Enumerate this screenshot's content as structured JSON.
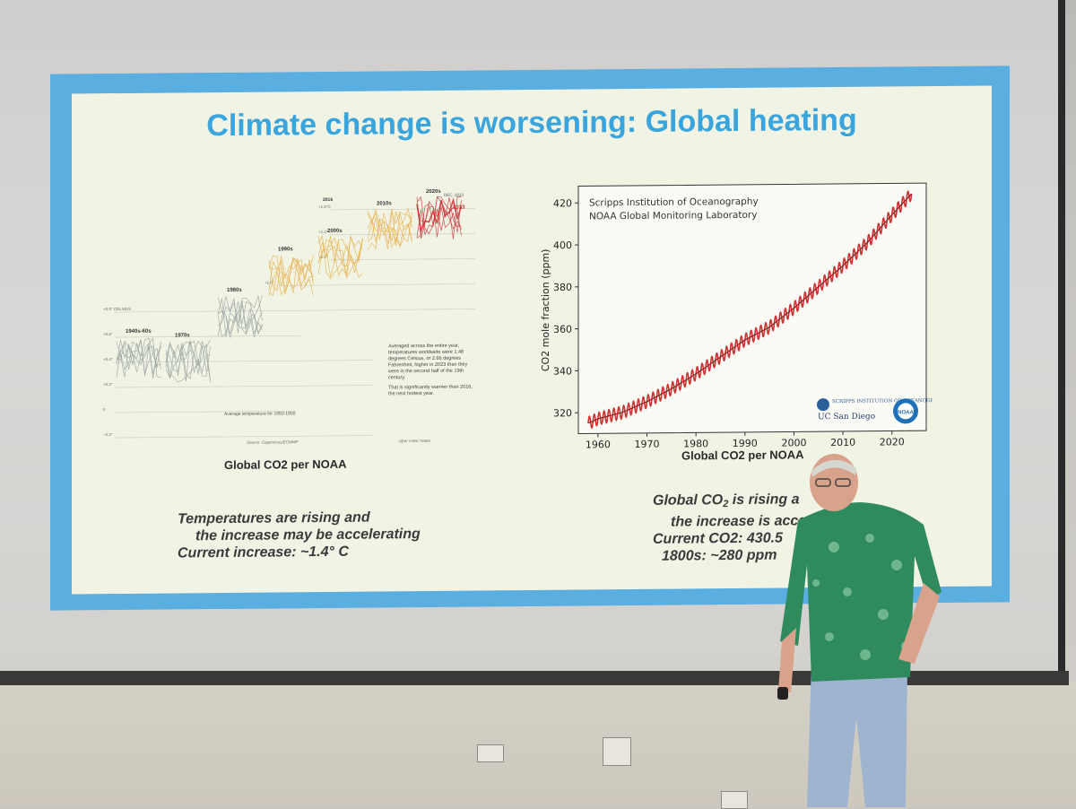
{
  "slide": {
    "title": "Climate change is worsening: Global heating",
    "left_caption": "Global CO2 per NOAA",
    "left_text": [
      "Temperatures are rising and",
      "the increase may be accelerating",
      "Current increase: ~1.4° C"
    ],
    "right_caption": "Global CO2 per NOAA",
    "right_text": {
      "line1_pre": "Global CO",
      "line1_sub": "2",
      "line1_post": " is rising a",
      "line2": "the increase is acce",
      "line3": "Current CO2: 430.5",
      "line4": "1800s: ~280 ppm"
    }
  },
  "temp_figure": {
    "decade_labels": [
      "1940s-60s",
      "1970s",
      "1980s",
      "1990s",
      "2000s",
      "2010s",
      "2020s",
      "2016",
      "2023",
      "DEC. 2023"
    ],
    "y_labels": [
      "+1.6°C",
      "+1.4°",
      "+1.2°",
      "+1.0°",
      "+0.8° CELSIUS",
      "+0.6°",
      "+0.4°",
      "+0.2°",
      "0",
      "−0.2°"
    ],
    "baseline_label": "Average temperature for 1850-1900",
    "annotation": "Averaged across the entire year, temperatures worldwide were 1.48 degrees Celsius, or 2.66 degrees Fahrenheit, higher in 2023 than they were in the second half of the 19th century.",
    "annotation2": "That is significantly warmer than 2016, the next hottest year.",
    "source": "Source: Copernicus/ECMWF",
    "credit": "NEW YORK TIMES",
    "colors": {
      "gray": "#9aa3a0",
      "orange": "#e8b04a",
      "red": "#c8343a"
    }
  },
  "chart_data": {
    "type": "line",
    "title": "",
    "xlabel": "",
    "ylabel": "CO2 mole fraction (ppm)",
    "annotations": [
      "Scripps Institution of Oceanography",
      "NOAA Global Monitoring Laboratory"
    ],
    "logos": [
      "SCRIPPS INSTITUTION OF OCEANOGRAPHY",
      "UC San Diego",
      "NOAA"
    ],
    "xlim": [
      1956,
      2027
    ],
    "ylim": [
      310,
      428
    ],
    "xticks": [
      1960,
      1970,
      1980,
      1990,
      2000,
      2010,
      2020
    ],
    "yticks": [
      320,
      340,
      360,
      380,
      400,
      420
    ],
    "series": [
      {
        "x": [
          1958,
          1960,
          1965,
          1970,
          1975,
          1980,
          1985,
          1990,
          1995,
          2000,
          2005,
          2010,
          2015,
          2020,
          2024
        ],
        "values": [
          315,
          317,
          320,
          325,
          331,
          338,
          346,
          354,
          360,
          369,
          379,
          389,
          400,
          413,
          423
        ],
        "seasonal_amplitude": 3,
        "color": "#cc3333"
      }
    ]
  }
}
